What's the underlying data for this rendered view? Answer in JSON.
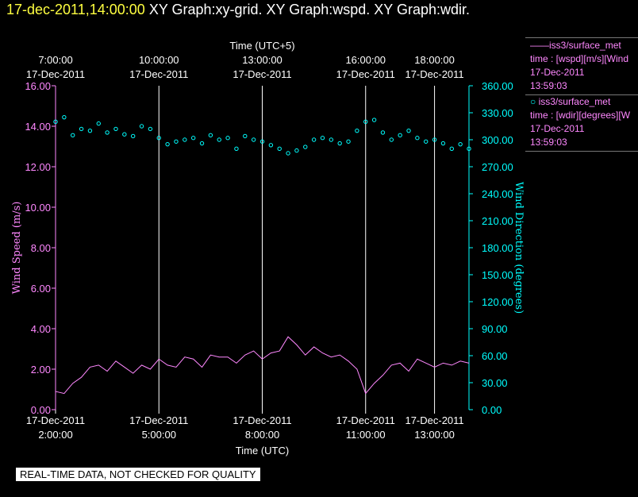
{
  "header": {
    "timestamp": "17-dec-2011,14:00:00",
    "titles": "XY Graph:xy-grid.  XY Graph:wspd.  XY Graph:wdir."
  },
  "legend": {
    "series1": {
      "name": "iss3/surface_met",
      "line1": "time : [wspd][m/s][Wind",
      "line2": "17-Dec-2011",
      "line3": "13:59:03"
    },
    "series2": {
      "name": "iss3/surface_met",
      "line1": "time : [wdir][degrees][W",
      "line2": "17-Dec-2011",
      "line3": "13:59:03"
    }
  },
  "footer_note": "REAL-TIME DATA, NOT CHECKED FOR QUALITY",
  "colors": {
    "background": "#000000",
    "wind_speed": "#ff88ff",
    "wind_direction": "#00ffff",
    "timestamp": "#ffff40",
    "grid": "#ffffff"
  },
  "chart_data": {
    "type": "line",
    "top_axis": {
      "label": "Time (UTC+5)",
      "ticks": [
        {
          "time": "7:00:00",
          "date": "17-Dec-2011"
        },
        {
          "time": "10:00:00",
          "date": "17-Dec-2011"
        },
        {
          "time": "13:00:00",
          "date": "17-Dec-2011"
        },
        {
          "time": "16:00:00",
          "date": "17-Dec-2011"
        },
        {
          "time": "18:00:00",
          "date": "17-Dec-2011"
        }
      ]
    },
    "bottom_axis": {
      "label": "Time (UTC)",
      "range": [
        "2011-12-17 02:00",
        "2011-12-17 14:00"
      ],
      "ticks": [
        {
          "date": "17-Dec-2011",
          "time": "2:00:00",
          "x": "2011-12-17 02:00"
        },
        {
          "date": "17-Dec-2011",
          "time": "5:00:00",
          "x": "2011-12-17 05:00"
        },
        {
          "date": "17-Dec-2011",
          "time": "8:00:00",
          "x": "2011-12-17 08:00"
        },
        {
          "date": "17-Dec-2011",
          "time": "11:00:00",
          "x": "2011-12-17 11:00"
        },
        {
          "date": "17-Dec-2011",
          "time": "13:00:00",
          "x": "2011-12-17 13:00"
        }
      ]
    },
    "left_axis": {
      "label": "Wind Speed (m/s)",
      "ylim": [
        0,
        16
      ],
      "ticks": [
        "0.00",
        "2.00",
        "4.00",
        "6.00",
        "8.00",
        "10.00",
        "12.00",
        "14.00",
        "16.00"
      ]
    },
    "right_axis": {
      "label": "Wind Direction (degrees)",
      "ylim": [
        0,
        360
      ],
      "ticks": [
        "0.00",
        "30.00",
        "60.00",
        "90.00",
        "120.00",
        "150.00",
        "180.00",
        "210.00",
        "240.00",
        "270.00",
        "300.00",
        "330.00",
        "360.00"
      ]
    },
    "grid": true,
    "series": [
      {
        "name": "wspd",
        "style": "line",
        "axis": "left",
        "x": [
          "02:00",
          "02:15",
          "02:30",
          "02:45",
          "03:00",
          "03:15",
          "03:30",
          "03:45",
          "04:00",
          "04:15",
          "04:30",
          "04:45",
          "05:00",
          "05:15",
          "05:30",
          "05:45",
          "06:00",
          "06:15",
          "06:30",
          "06:45",
          "07:00",
          "07:15",
          "07:30",
          "07:45",
          "08:00",
          "08:15",
          "08:30",
          "08:45",
          "09:00",
          "09:15",
          "09:30",
          "09:45",
          "10:00",
          "10:15",
          "10:30",
          "10:45",
          "11:00",
          "11:15",
          "11:30",
          "11:45",
          "12:00",
          "12:15",
          "12:30",
          "12:45",
          "13:00",
          "13:15",
          "13:30",
          "13:45",
          "14:00"
        ],
        "values": [
          0.9,
          0.8,
          1.3,
          1.6,
          2.1,
          2.2,
          1.9,
          2.4,
          2.1,
          1.8,
          2.2,
          2.0,
          2.5,
          2.2,
          2.1,
          2.6,
          2.5,
          2.1,
          2.7,
          2.6,
          2.6,
          2.3,
          2.7,
          2.9,
          2.5,
          2.8,
          2.9,
          3.6,
          3.2,
          2.7,
          3.1,
          2.8,
          2.6,
          2.7,
          2.4,
          2.0,
          0.8,
          1.3,
          1.7,
          2.2,
          2.3,
          1.9,
          2.5,
          2.3,
          2.1,
          2.3,
          2.2,
          2.4,
          2.3
        ]
      },
      {
        "name": "wdir",
        "style": "scatter",
        "axis": "right",
        "x": [
          "02:00",
          "02:15",
          "02:30",
          "02:45",
          "03:00",
          "03:15",
          "03:30",
          "03:45",
          "04:00",
          "04:15",
          "04:30",
          "04:45",
          "05:00",
          "05:15",
          "05:30",
          "05:45",
          "06:00",
          "06:15",
          "06:30",
          "06:45",
          "07:00",
          "07:15",
          "07:30",
          "07:45",
          "08:00",
          "08:15",
          "08:30",
          "08:45",
          "09:00",
          "09:15",
          "09:30",
          "09:45",
          "10:00",
          "10:15",
          "10:30",
          "10:45",
          "11:00",
          "11:15",
          "11:30",
          "11:45",
          "12:00",
          "12:15",
          "12:30",
          "12:45",
          "13:00",
          "13:15",
          "13:30",
          "13:45",
          "14:00"
        ],
        "values": [
          320,
          325,
          305,
          312,
          310,
          318,
          308,
          312,
          306,
          304,
          315,
          312,
          302,
          295,
          298,
          300,
          302,
          296,
          305,
          300,
          302,
          290,
          304,
          300,
          298,
          294,
          290,
          285,
          288,
          292,
          300,
          302,
          300,
          296,
          298,
          310,
          320,
          322,
          308,
          300,
          305,
          310,
          302,
          298,
          300,
          296,
          290,
          295,
          290
        ]
      }
    ]
  }
}
